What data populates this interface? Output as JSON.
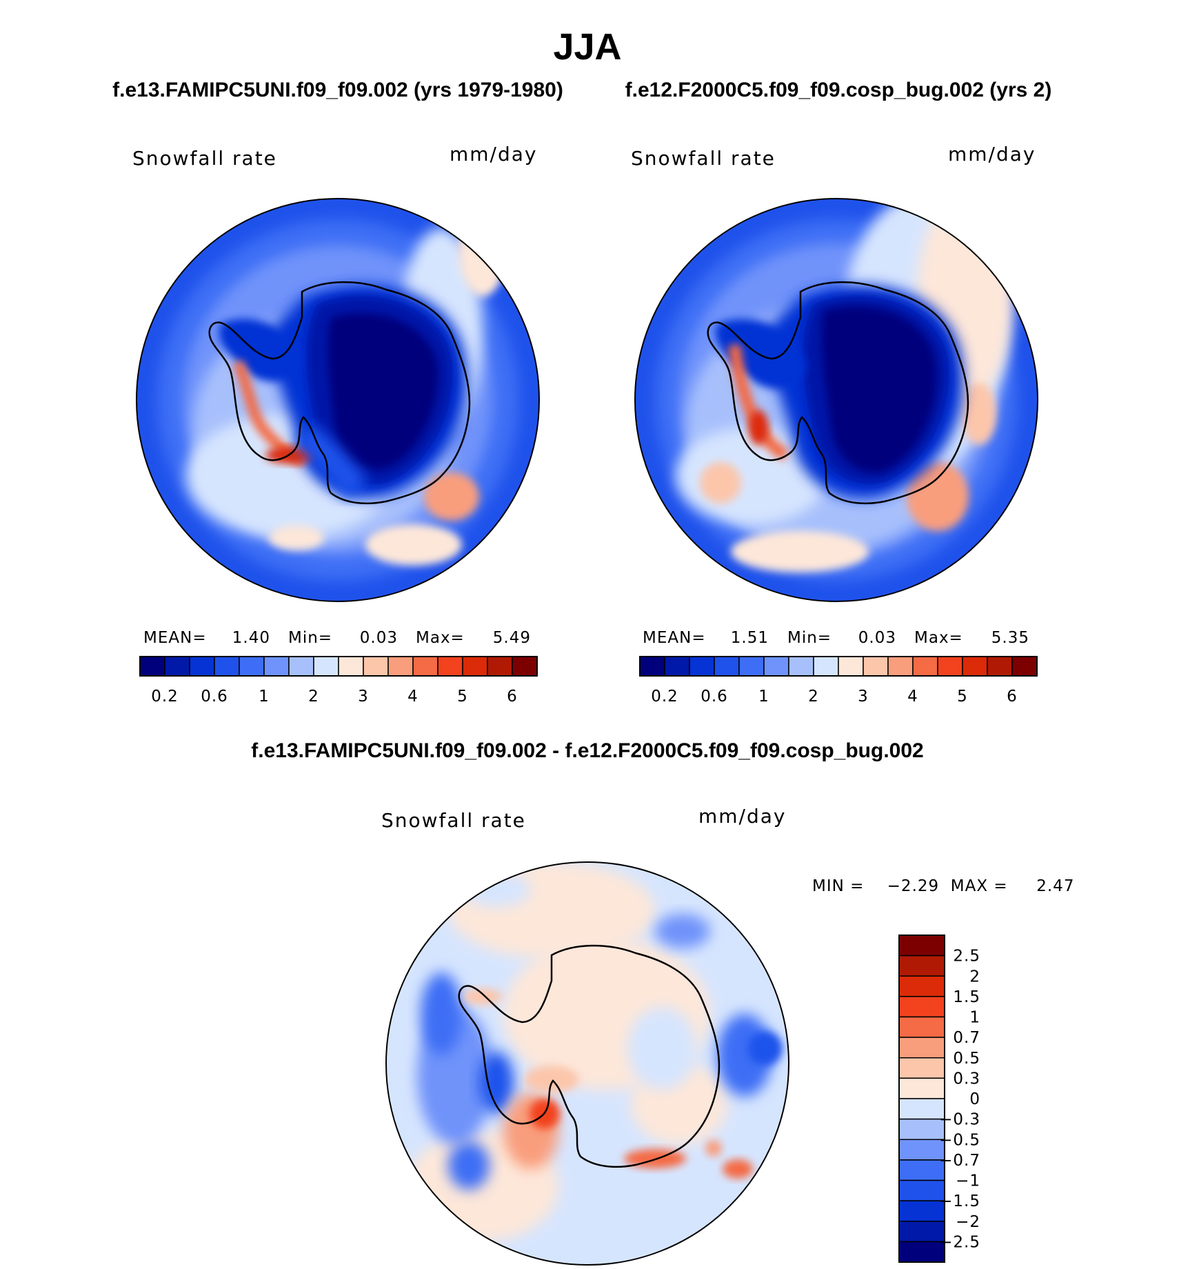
{
  "title": "JJA",
  "subtitle_left": "f.e13.FAMIPC5UNI.f09_f09.002 (yrs 1979-1980)",
  "subtitle_right": "f.e12.F2000C5.f09_f09.cosp_bug.002 (yrs 2)",
  "diff_title": "f.e13.FAMIPC5UNI.f09_f09.002 - f.e12.F2000C5.f09_f09.cosp_bug.002",
  "seq_colors": [
    "#00007d",
    "#0019a8",
    "#0533d4",
    "#1f52eb",
    "#3d6ef5",
    "#6f93fa",
    "#a7c0fc",
    "#d6e5fe",
    "#fde7d9",
    "#fcc6ab",
    "#f99e7d",
    "#f46b45",
    "#f2421e",
    "#db2b08",
    "#b01a04",
    "#7d0000"
  ],
  "div_colors": [
    "#00007d",
    "#0019a8",
    "#0533d4",
    "#1f52eb",
    "#3d6ef5",
    "#6f93fa",
    "#a7c0fc",
    "#d6e5fe",
    "#fde7d9",
    "#fcc6ab",
    "#f99e7d",
    "#f46b45",
    "#f2421e",
    "#db2b08",
    "#b01a04",
    "#7d0000"
  ],
  "chart_data": [
    {
      "type": "heatmap",
      "projection": "south-polar-stereographic",
      "title": "Snowfall rate",
      "units": "mm/day",
      "stats": {
        "mean_label": "MEAN=",
        "mean": "1.40",
        "min_label": "Min=",
        "min": "0.03",
        "max_label": "Max=",
        "max": "5.49"
      },
      "colorbar": {
        "orientation": "horizontal",
        "levels": [
          "0.2",
          "0.6",
          "1",
          "2",
          "3",
          "4",
          "5",
          "6"
        ]
      }
    },
    {
      "type": "heatmap",
      "projection": "south-polar-stereographic",
      "title": "Snowfall rate",
      "units": "mm/day",
      "stats": {
        "mean_label": "MEAN=",
        "mean": "1.51",
        "min_label": "Min=",
        "min": "0.03",
        "max_label": "Max=",
        "max": "5.35"
      },
      "colorbar": {
        "orientation": "horizontal",
        "levels": [
          "0.2",
          "0.6",
          "1",
          "2",
          "3",
          "4",
          "5",
          "6"
        ]
      }
    },
    {
      "type": "heatmap",
      "projection": "south-polar-stereographic",
      "title": "Snowfall rate",
      "units": "mm/day",
      "stats_text": "MIN =    −2.29  MAX =     2.47",
      "colorbar": {
        "orientation": "vertical",
        "levels": [
          "2.5",
          "2",
          "1.5",
          "1",
          "0.7",
          "0.5",
          "0.3",
          "0",
          "−0.3",
          "−0.5",
          "−0.7",
          "−1",
          "−1.5",
          "−2",
          "−2.5"
        ]
      }
    }
  ]
}
